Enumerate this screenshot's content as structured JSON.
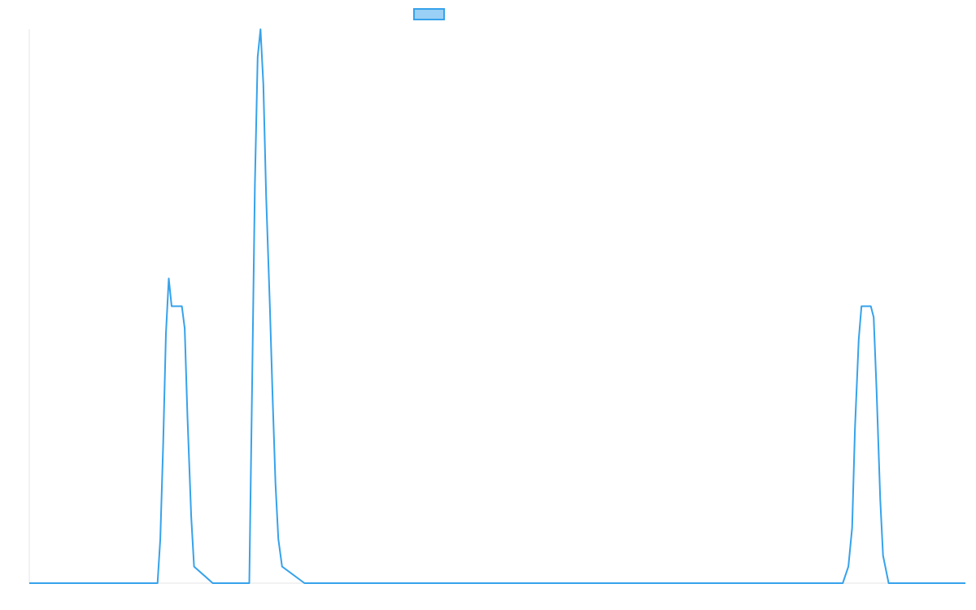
{
  "chart_data": {
    "type": "line",
    "title": "",
    "xlabel": "",
    "ylabel": "",
    "ylim": [
      0,
      1
    ],
    "xlim": [
      0,
      1000
    ],
    "grid": false,
    "legend_position": "top-center",
    "series": [
      {
        "label": "",
        "color": "#36a2eb",
        "fill": "#9ad0f5",
        "points": [
          [
            0,
            0
          ],
          [
            137,
            0
          ],
          [
            140,
            0.08
          ],
          [
            143,
            0.25
          ],
          [
            146,
            0.45
          ],
          [
            149,
            0.55
          ],
          [
            152,
            0.5
          ],
          [
            157,
            0.5
          ],
          [
            160,
            0.5
          ],
          [
            163,
            0.5
          ],
          [
            166,
            0.46
          ],
          [
            169,
            0.3
          ],
          [
            173,
            0.12
          ],
          [
            176,
            0.03
          ],
          [
            196,
            0
          ],
          [
            235,
            0
          ],
          [
            238,
            0.35
          ],
          [
            241,
            0.72
          ],
          [
            244,
            0.95
          ],
          [
            247,
            1.0
          ],
          [
            250,
            0.9
          ],
          [
            253,
            0.7
          ],
          [
            257,
            0.5
          ],
          [
            260,
            0.33
          ],
          [
            263,
            0.18
          ],
          [
            266,
            0.08
          ],
          [
            270,
            0.03
          ],
          [
            294,
            0
          ],
          [
            869,
            0
          ],
          [
            875,
            0.03
          ],
          [
            879,
            0.1
          ],
          [
            882,
            0.28
          ],
          [
            886,
            0.44
          ],
          [
            889,
            0.5
          ],
          [
            892,
            0.5
          ],
          [
            896,
            0.5
          ],
          [
            899,
            0.5
          ],
          [
            902,
            0.48
          ],
          [
            905,
            0.35
          ],
          [
            909,
            0.15
          ],
          [
            912,
            0.05
          ],
          [
            918,
            0
          ],
          [
            1000,
            0
          ]
        ]
      }
    ]
  }
}
